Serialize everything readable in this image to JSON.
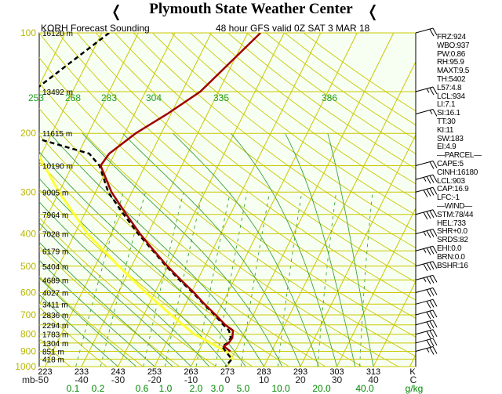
{
  "header": {
    "title": "Plymouth State Weather Center",
    "left_icon": "wind-barb-icon",
    "right_icon": "wind-barb-icon"
  },
  "plot": {
    "station_label": "KORH Forecast Sounding",
    "valid_label": "48 hour GFS valid 0Z SAT  3 MAR 18"
  },
  "colors": {
    "background": "#f7fff3",
    "isobar": "#c8c800",
    "isotherm": "#c8c800",
    "dry_adiabat": "#c8c800",
    "moist_adiabat": "#3aa03a",
    "mixing_ratio": "#3aa03a",
    "theta_e_label": "#22a022",
    "pressure_label": "#b8b800",
    "temperature_trace": "#a00000",
    "dewpoint_trace": "#000000",
    "parcel_trace": "#ffff33",
    "bottom_mixing_ratio_label": "#008800"
  },
  "sidebar": [
    "FRZ:924",
    "WBO:937",
    "PW:0.86",
    "RH:95.9",
    "MAXT:9.5",
    "TH:5402",
    "L57:4.8",
    "LCL:934",
    "LI:7.1",
    "SI:16.1",
    "TT:30",
    "KI:11",
    "SW:183",
    "EI:4.9",
    "—PARCEL—",
    "CAPE:5",
    "CINH:16180",
    "LCL:903",
    "CAP:16.9",
    "LFC:-1",
    "—WIND—",
    "STM:78/44",
    "HEL:733",
    "SHR+0.0",
    "SRDS:82",
    "EHI:0.0",
    "BRN:0.0",
    "BSHR:16"
  ],
  "chart_data": {
    "type": "skew-t",
    "pressure_axis": {
      "ylim_hpa": [
        1000,
        100
      ],
      "scale": "log",
      "ticks": [
        100,
        200,
        300,
        400,
        500,
        600,
        700,
        800,
        900,
        1000
      ]
    },
    "height_labels": [
      {
        "p": 100,
        "label": "16120 m"
      },
      {
        "p": 150,
        "label": "13492 m"
      },
      {
        "p": 200,
        "label": "11615 m"
      },
      {
        "p": 250,
        "label": "10190 m"
      },
      {
        "p": 300,
        "label": "9005 m"
      },
      {
        "p": 350,
        "label": "7964 m"
      },
      {
        "p": 400,
        "label": "7028 m"
      },
      {
        "p": 450,
        "label": "6179 m"
      },
      {
        "p": 500,
        "label": "5404 m"
      },
      {
        "p": 550,
        "label": "4689 m"
      },
      {
        "p": 600,
        "label": "4027 m"
      },
      {
        "p": 650,
        "label": "3411 m"
      },
      {
        "p": 700,
        "label": "2836 m"
      },
      {
        "p": 750,
        "label": "2294 m"
      },
      {
        "p": 800,
        "label": "1783 m"
      },
      {
        "p": 850,
        "label": "1304 m"
      },
      {
        "p": 900,
        "label": "851 m"
      },
      {
        "p": 950,
        "label": "418 m"
      }
    ],
    "temperature_axis": {
      "unit": "C",
      "ticks": [
        -50,
        -40,
        -30,
        -20,
        -10,
        0,
        10,
        20,
        30,
        40
      ],
      "labels": [
        "mb-50",
        "-40",
        "-30",
        "-20",
        "-10",
        "0",
        "10",
        "20",
        "30",
        "40"
      ]
    },
    "kelvin_labels": [
      {
        "value": 223,
        "label": "223"
      },
      {
        "value": 233,
        "label": "233"
      },
      {
        "value": 243,
        "label": "243"
      },
      {
        "value": 253,
        "label": "253"
      },
      {
        "value": 263,
        "label": "263"
      },
      {
        "value": 273,
        "label": "273"
      },
      {
        "value": 283,
        "label": "283"
      },
      {
        "value": 293,
        "label": "293"
      },
      {
        "value": 303,
        "label": "303"
      },
      {
        "value": 313,
        "label": "313"
      },
      {
        "value": 0,
        "label": "K"
      }
    ],
    "theta_e_labels": [
      253,
      268,
      283,
      304,
      335,
      386
    ],
    "mixing_ratio_labels": [
      "0.1",
      "0.2",
      "0.6",
      "1.0",
      "2.0",
      "3.0",
      "5.0",
      "10.0",
      "20.0",
      "40.0",
      "g/kg"
    ],
    "temperature_profile": [
      {
        "p": 100,
        "t": -36.5
      },
      {
        "p": 150,
        "t": -45
      },
      {
        "p": 175,
        "t": -51
      },
      {
        "p": 200,
        "t": -57
      },
      {
        "p": 230,
        "t": -61.5
      },
      {
        "p": 250,
        "t": -62.2
      },
      {
        "p": 300,
        "t": -55.6
      },
      {
        "p": 350,
        "t": -48.5
      },
      {
        "p": 400,
        "t": -42.1
      },
      {
        "p": 450,
        "t": -35.9
      },
      {
        "p": 500,
        "t": -30.2
      },
      {
        "p": 550,
        "t": -24.6
      },
      {
        "p": 600,
        "t": -19.3
      },
      {
        "p": 650,
        "t": -14.8
      },
      {
        "p": 700,
        "t": -10.3
      },
      {
        "p": 750,
        "t": -6.3
      },
      {
        "p": 780,
        "t": -3.4
      },
      {
        "p": 820,
        "t": -2.6
      },
      {
        "p": 850,
        "t": -2.9
      },
      {
        "p": 870,
        "t": -3.7
      },
      {
        "p": 900,
        "t": -1.3
      }
    ],
    "dewpoint_profile": [
      {
        "p": 100,
        "t": -78
      },
      {
        "p": 150,
        "t": -91
      },
      {
        "p": 200,
        "t": -89
      },
      {
        "p": 230,
        "t": -67
      },
      {
        "p": 250,
        "t": -62.5
      },
      {
        "p": 300,
        "t": -56.5
      },
      {
        "p": 350,
        "t": -49.2
      },
      {
        "p": 400,
        "t": -42.6
      },
      {
        "p": 450,
        "t": -36.2
      },
      {
        "p": 500,
        "t": -30.5
      },
      {
        "p": 550,
        "t": -25
      },
      {
        "p": 600,
        "t": -19.6
      },
      {
        "p": 650,
        "t": -15
      },
      {
        "p": 700,
        "t": -10.6
      },
      {
        "p": 750,
        "t": -6.8
      },
      {
        "p": 780,
        "t": -4.5
      },
      {
        "p": 820,
        "t": -3
      },
      {
        "p": 850,
        "t": -3.2
      },
      {
        "p": 870,
        "t": -4.2
      },
      {
        "p": 900,
        "t": -2.6
      },
      {
        "p": 950,
        "t": 0.2
      },
      {
        "p": 975,
        "t": -0.2
      },
      {
        "p": 1000,
        "t": -0.5
      }
    ],
    "parcel_profile": [
      {
        "p": 100,
        "t": -113
      },
      {
        "p": 200,
        "t": -87
      },
      {
        "p": 300,
        "t": -70
      },
      {
        "p": 400,
        "t": -56.5
      },
      {
        "p": 500,
        "t": -43.5
      },
      {
        "p": 600,
        "t": -32.5
      },
      {
        "p": 700,
        "t": -22.5
      },
      {
        "p": 800,
        "t": -13.5
      },
      {
        "p": 900,
        "t": -2.5
      },
      {
        "p": 950,
        "t": 0.6
      }
    ],
    "wind_barbs_right": [
      {
        "p": 100,
        "kt": 20
      },
      {
        "p": 150,
        "kt": 25
      },
      {
        "p": 175,
        "kt": 15
      },
      {
        "p": 250,
        "kt": 20
      },
      {
        "p": 275,
        "kt": 35
      },
      {
        "p": 300,
        "kt": 40
      },
      {
        "p": 350,
        "kt": 40
      },
      {
        "p": 400,
        "kt": 35
      },
      {
        "p": 450,
        "kt": 35
      },
      {
        "p": 500,
        "kt": 40
      },
      {
        "p": 550,
        "kt": 35
      },
      {
        "p": 600,
        "kt": 30
      },
      {
        "p": 650,
        "kt": 30
      },
      {
        "p": 700,
        "kt": 30
      },
      {
        "p": 750,
        "kt": 30
      },
      {
        "p": 800,
        "kt": 30
      },
      {
        "p": 850,
        "kt": 30
      },
      {
        "p": 900,
        "kt": 25
      }
    ]
  }
}
